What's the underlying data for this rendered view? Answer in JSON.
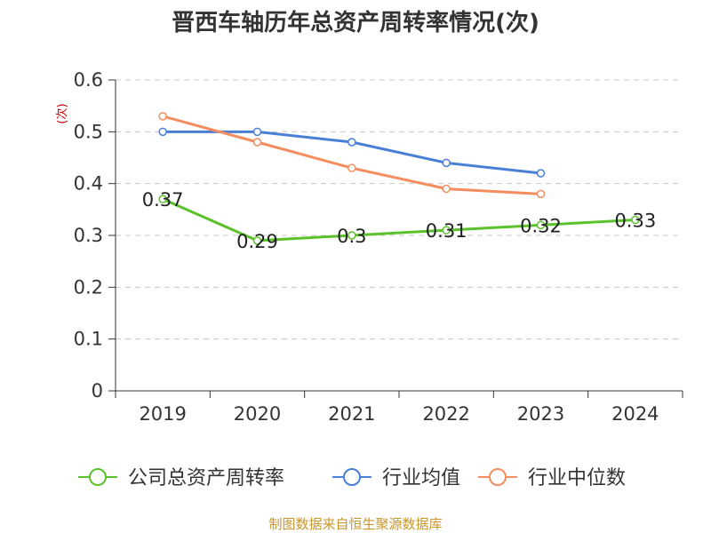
{
  "chart_data": {
    "type": "line",
    "title": "晋西车轴历年总资产周转率情况(次)",
    "unit_label": "(次)",
    "categories": [
      "2019",
      "2020",
      "2021",
      "2022",
      "2023",
      "2024"
    ],
    "ylim": [
      0,
      0.6
    ],
    "yticks": [
      "0",
      "0.1",
      "0.2",
      "0.3",
      "0.4",
      "0.5",
      "0.6"
    ],
    "grid": true,
    "legend_position": "bottom",
    "series": [
      {
        "name": "公司总资产周转率",
        "color": "#5cc22b",
        "values": [
          0.37,
          0.29,
          0.3,
          0.31,
          0.32,
          0.33
        ],
        "labels": [
          "0.37",
          "0.29",
          "0.3",
          "0.31",
          "0.32",
          "0.33"
        ]
      },
      {
        "name": "行业均值",
        "color": "#4a7fd8",
        "values": [
          0.5,
          0.5,
          0.48,
          0.44,
          0.42,
          null
        ]
      },
      {
        "name": "行业中位数",
        "color": "#f58d5e",
        "values": [
          0.53,
          0.48,
          0.43,
          0.39,
          0.38,
          null
        ]
      }
    ],
    "source": "制图数据来自恒生聚源数据库"
  }
}
